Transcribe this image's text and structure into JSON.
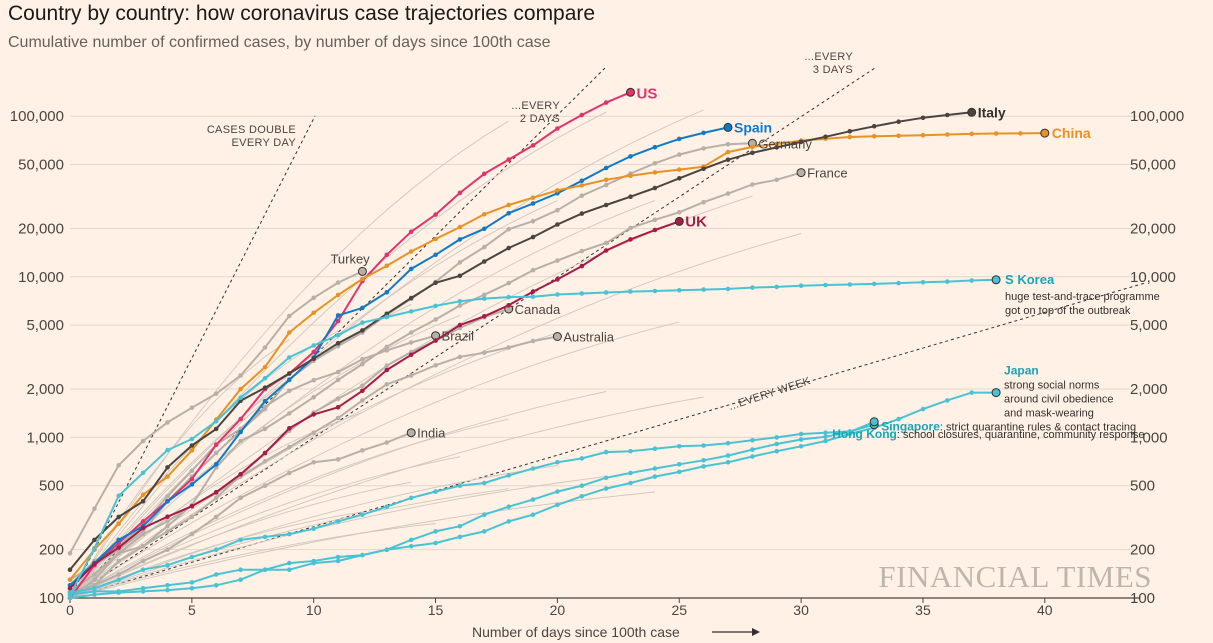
{
  "title": "Country by country: how coronavirus case trajectories compare",
  "subtitle": "Cumulative number of confirmed cases, by number of days since 100th case",
  "watermark": "FINANCIAL TIMES",
  "chart_data": {
    "type": "line",
    "scale": "log",
    "xlabel": "Number of days since 100th case",
    "xlim": [
      0,
      44
    ],
    "ylim": [
      100,
      150000
    ],
    "x_ticks": [
      "0",
      "5",
      "10",
      "15",
      "20",
      "25",
      "30",
      "35",
      "40"
    ],
    "y_ticks_left": [
      "100",
      "200",
      "500",
      "1,000",
      "2,000",
      "5,000",
      "10,000",
      "20,000",
      "50,000",
      "100,000"
    ],
    "y_ticks_right": [
      "100",
      "200",
      "500",
      "1,000",
      "2,000",
      "5,000",
      "10,000",
      "20,000",
      "50,000",
      "100,000"
    ],
    "guides": [
      {
        "label": [
          "CASES DOUBLE",
          "EVERY DAY"
        ]
      },
      {
        "label": [
          "...EVERY",
          "2 DAYS"
        ]
      },
      {
        "label": [
          "...EVERY",
          "3 DAYS"
        ]
      },
      {
        "label": [
          "...EVERY WEEK"
        ]
      }
    ],
    "series": [
      {
        "name": "US",
        "color": "#e3336c",
        "highlight": true,
        "values": [
          100,
          160,
          220,
          300,
          400,
          550,
          900,
          1300,
          2000,
          2500,
          3400,
          5300,
          9400,
          13700,
          19100,
          24400,
          33300,
          43800,
          53700,
          65800,
          83800,
          101700,
          121500,
          140900
        ]
      },
      {
        "name": "Spain",
        "color": "#0f7ac6",
        "highlight": true,
        "values": [
          120,
          165,
          230,
          280,
          400,
          510,
          680,
          1080,
          1680,
          2280,
          3140,
          5750,
          6400,
          8010,
          11200,
          13700,
          17100,
          19900,
          24900,
          28600,
          33100,
          39600,
          47600,
          56200,
          64100,
          72200,
          78700,
          85200
        ]
      },
      {
        "name": "China",
        "color": "#e79224",
        "highlight": true,
        "values": [
          130,
          200,
          290,
          440,
          570,
          830,
          1290,
          2000,
          2740,
          4500,
          5970,
          7700,
          9690,
          11700,
          14380,
          17200,
          20400,
          24500,
          28000,
          31100,
          34500,
          37100,
          40150,
          42600,
          44700,
          46500,
          48500,
          59800,
          64400,
          67100,
          70500,
          72400,
          74200,
          75000,
          75500,
          76200,
          76900,
          77600,
          78000,
          78200,
          78500
        ]
      },
      {
        "name": "Italy",
        "color": "#4b4440",
        "highlight": true,
        "values": [
          150,
          230,
          320,
          400,
          650,
          890,
          1130,
          1690,
          2040,
          2500,
          3090,
          3860,
          4640,
          5880,
          7380,
          9170,
          10150,
          12460,
          15110,
          17660,
          21160,
          24750,
          27980,
          31510,
          35700,
          41040,
          47020,
          53580,
          59140,
          63930,
          69180,
          74390,
          80540,
          86500,
          92470,
          97690,
          101740,
          105790
        ]
      },
      {
        "name": "UK",
        "color": "#a51c48",
        "highlight": true,
        "values": [
          115,
          163,
          206,
          273,
          321,
          373,
          456,
          590,
          800,
          1140,
          1390,
          1540,
          1950,
          2630,
          3270,
          4010,
          5000,
          5680,
          6650,
          8090,
          9640,
          11660,
          14580,
          17090,
          19550,
          22140
        ]
      },
      {
        "name": "S Korea",
        "color": "#49c3d4",
        "highlight": true,
        "note": [
          "huge test-and-trace programme",
          "got on top of the outbreak"
        ],
        "values": [
          104,
          204,
          433,
          602,
          833,
          977,
          1261,
          1766,
          2337,
          3150,
          3736,
          4335,
          5186,
          5621,
          6088,
          6593,
          7041,
          7314,
          7478,
          7513,
          7755,
          7869,
          7979,
          8086,
          8162,
          8236,
          8320,
          8413,
          8565,
          8652,
          8799,
          8897,
          8961,
          9037,
          9137,
          9241,
          9332,
          9478,
          9583
        ]
      },
      {
        "name": "Japan",
        "color": "#49c3d4",
        "highlight": true,
        "note": [
          "strong social norms",
          "around civil obedience",
          "and mask-wearing"
        ],
        "values": [
          105,
          110,
          110,
          115,
          120,
          125,
          140,
          150,
          150,
          165,
          170,
          180,
          185,
          200,
          210,
          220,
          240,
          260,
          300,
          330,
          380,
          430,
          480,
          520,
          570,
          610,
          660,
          700,
          760,
          820,
          880,
          950,
          1050,
          1150,
          1300,
          1500,
          1700,
          1900,
          1900
        ]
      },
      {
        "name": "Singapore",
        "color": "#49c3d4",
        "highlight": true,
        "note": [
          "strict quarantine rules & contact tracing"
        ],
        "values": [
          108,
          115,
          130,
          150,
          160,
          180,
          200,
          230,
          240,
          250,
          270,
          300,
          330,
          370,
          420,
          460,
          500,
          520,
          580,
          640,
          700,
          740,
          810,
          820,
          850,
          880,
          890,
          920,
          960,
          1000,
          1050,
          1070,
          1090,
          1200
        ]
      },
      {
        "name": "Hong Kong",
        "color": "#49c3d4",
        "highlight": true,
        "note": [
          "school closures, quarantine, community response"
        ],
        "values": [
          100,
          105,
          108,
          110,
          112,
          115,
          120,
          130,
          150,
          150,
          165,
          170,
          185,
          200,
          230,
          260,
          280,
          330,
          370,
          410,
          460,
          500,
          560,
          600,
          640,
          680,
          720,
          770,
          840,
          910,
          970,
          1010,
          1080,
          1250
        ]
      },
      {
        "name": "Germany",
        "color": "#b8b0a8",
        "values": [
          130,
          160,
          200,
          260,
          400,
          570,
          800,
          1100,
          1500,
          2300,
          3000,
          3700,
          4500,
          5800,
          7300,
          9300,
          12300,
          15300,
          19800,
          22200,
          26000,
          32000,
          37300,
          43900,
          50900,
          57700,
          63000,
          66900,
          67800
        ]
      },
      {
        "name": "France",
        "color": "#b8b0a8",
        "values": [
          100,
          130,
          190,
          210,
          280,
          380,
          650,
          950,
          1130,
          1410,
          1780,
          2280,
          2860,
          3660,
          4500,
          5420,
          6630,
          7730,
          9130,
          10990,
          12610,
          14460,
          16240,
          20120,
          22630,
          25230,
          29160,
          32960,
          37580,
          40200,
          44550
        ]
      },
      {
        "name": "Turkey",
        "color": "#b8b0a8",
        "values": [
          190,
          360,
          670,
          950,
          1240,
          1530,
          1870,
          2430,
          3630,
          5700,
          7400,
          9200,
          10800
        ]
      },
      {
        "name": "Canada",
        "color": "#b8b0a8",
        "values": [
          100,
          120,
          170,
          210,
          260,
          320,
          420,
          580,
          800,
          1100,
          1430,
          1740,
          2100,
          2800,
          3400,
          4000,
          4800,
          5600,
          6300
        ]
      },
      {
        "name": "Brazil",
        "color": "#b8b0a8",
        "values": [
          120,
          170,
          210,
          290,
          430,
          620,
          900,
          1130,
          1550,
          1950,
          2270,
          2550,
          3070,
          3480,
          3900,
          4300
        ]
      },
      {
        "name": "Australia",
        "color": "#b8b0a8",
        "values": [
          110,
          140,
          190,
          250,
          300,
          375,
          450,
          570,
          710,
          870,
          1070,
          1320,
          1700,
          2140,
          2430,
          2810,
          3170,
          3370,
          3630,
          3980,
          4250
        ]
      },
      {
        "name": "India",
        "color": "#b8b0a8",
        "values": [
          110,
          120,
          140,
          170,
          200,
          250,
          320,
          420,
          500,
          600,
          700,
          730,
          830,
          930,
          1070
        ]
      }
    ]
  }
}
